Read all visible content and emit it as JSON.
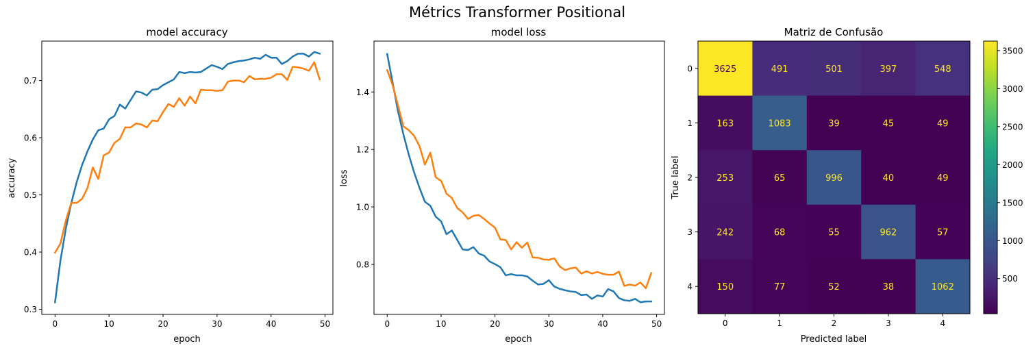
{
  "figure_title": "Métrics Transformer Positional",
  "chart_data": [
    {
      "type": "line",
      "title": "model accuracy",
      "xlabel": "epoch",
      "ylabel": "accuracy",
      "xlim": [
        -2.45,
        51.45
      ],
      "ylim": [
        0.291,
        0.769
      ],
      "xticks": [
        0,
        10,
        20,
        30,
        40,
        50
      ],
      "xtick_labels": [
        "0",
        "10",
        "20",
        "30",
        "40",
        "50"
      ],
      "yticks": [
        0.3,
        0.4,
        0.5,
        0.6,
        0.7
      ],
      "ytick_labels": [
        "0.3",
        "0.4",
        "0.5",
        "0.6",
        "0.7"
      ],
      "grid": false,
      "x": [
        0,
        1,
        2,
        3,
        4,
        5,
        6,
        7,
        8,
        9,
        10,
        11,
        12,
        13,
        14,
        15,
        16,
        17,
        18,
        19,
        20,
        21,
        22,
        23,
        24,
        25,
        26,
        27,
        28,
        29,
        30,
        31,
        32,
        33,
        34,
        35,
        36,
        37,
        38,
        39,
        40,
        41,
        42,
        43,
        44,
        45,
        46,
        47,
        48,
        49
      ],
      "series": [
        {
          "color": "#1f77b4",
          "values": [
            0.312,
            0.385,
            0.441,
            0.485,
            0.522,
            0.552,
            0.576,
            0.597,
            0.613,
            0.616,
            0.632,
            0.638,
            0.658,
            0.651,
            0.666,
            0.681,
            0.679,
            0.674,
            0.684,
            0.685,
            0.692,
            0.697,
            0.702,
            0.715,
            0.713,
            0.715,
            0.714,
            0.715,
            0.721,
            0.727,
            0.724,
            0.72,
            0.729,
            0.732,
            0.734,
            0.735,
            0.737,
            0.74,
            0.738,
            0.745,
            0.74,
            0.74,
            0.729,
            0.734,
            0.742,
            0.747,
            0.747,
            0.742,
            0.75,
            0.747
          ]
        },
        {
          "color": "#ff7f0e",
          "values": [
            0.399,
            0.415,
            0.455,
            0.486,
            0.486,
            0.493,
            0.512,
            0.548,
            0.528,
            0.569,
            0.574,
            0.591,
            0.598,
            0.618,
            0.618,
            0.625,
            0.623,
            0.618,
            0.63,
            0.629,
            0.645,
            0.659,
            0.654,
            0.669,
            0.656,
            0.672,
            0.66,
            0.684,
            0.683,
            0.683,
            0.682,
            0.683,
            0.698,
            0.7,
            0.7,
            0.697,
            0.708,
            0.702,
            0.703,
            0.703,
            0.705,
            0.711,
            0.711,
            0.701,
            0.724,
            0.723,
            0.721,
            0.717,
            0.732,
            0.702
          ]
        }
      ]
    },
    {
      "type": "line",
      "title": "model loss",
      "xlabel": "epoch",
      "ylabel": "loss",
      "xlim": [
        -2.45,
        51.45
      ],
      "ylim": [
        0.626,
        1.577
      ],
      "xticks": [
        0,
        10,
        20,
        30,
        40,
        50
      ],
      "xtick_labels": [
        "0",
        "10",
        "20",
        "30",
        "40",
        "50"
      ],
      "yticks": [
        0.8,
        1.0,
        1.2,
        1.4
      ],
      "ytick_labels": [
        "0.8",
        "1.0",
        "1.2",
        "1.4"
      ],
      "grid": false,
      "x": [
        0,
        1,
        2,
        3,
        4,
        5,
        6,
        7,
        8,
        9,
        10,
        11,
        12,
        13,
        14,
        15,
        16,
        17,
        18,
        19,
        20,
        21,
        22,
        23,
        24,
        25,
        26,
        27,
        28,
        29,
        30,
        31,
        32,
        33,
        34,
        35,
        36,
        37,
        38,
        39,
        40,
        41,
        42,
        43,
        44,
        45,
        46,
        47,
        48,
        49
      ],
      "series": [
        {
          "color": "#1f77b4",
          "values": [
            1.532,
            1.433,
            1.333,
            1.253,
            1.182,
            1.12,
            1.066,
            1.018,
            1.004,
            0.966,
            0.95,
            0.905,
            0.918,
            0.885,
            0.852,
            0.85,
            0.86,
            0.838,
            0.83,
            0.81,
            0.801,
            0.79,
            0.762,
            0.766,
            0.762,
            0.762,
            0.758,
            0.743,
            0.73,
            0.732,
            0.745,
            0.723,
            0.715,
            0.71,
            0.706,
            0.704,
            0.693,
            0.695,
            0.68,
            0.692,
            0.688,
            0.714,
            0.706,
            0.683,
            0.675,
            0.673,
            0.68,
            0.668,
            0.671,
            0.671
          ]
        },
        {
          "color": "#ff7f0e",
          "values": [
            1.476,
            1.424,
            1.353,
            1.28,
            1.267,
            1.247,
            1.211,
            1.147,
            1.189,
            1.103,
            1.091,
            1.046,
            1.031,
            0.996,
            0.981,
            0.958,
            0.969,
            0.972,
            0.958,
            0.942,
            0.928,
            0.887,
            0.885,
            0.852,
            0.877,
            0.858,
            0.876,
            0.824,
            0.823,
            0.817,
            0.816,
            0.821,
            0.793,
            0.78,
            0.786,
            0.789,
            0.768,
            0.776,
            0.768,
            0.774,
            0.767,
            0.764,
            0.764,
            0.775,
            0.725,
            0.73,
            0.726,
            0.737,
            0.717,
            0.77
          ]
        }
      ]
    },
    {
      "type": "heatmap",
      "title": "Matriz de Confusão",
      "xlabel": "Predicted label",
      "ylabel": "True label",
      "x_categories": [
        "0",
        "1",
        "2",
        "3",
        "4"
      ],
      "y_categories": [
        "0",
        "1",
        "2",
        "3",
        "4"
      ],
      "matrix": [
        [
          3625,
          491,
          501,
          397,
          548
        ],
        [
          163,
          1083,
          39,
          45,
          49
        ],
        [
          253,
          65,
          996,
          40,
          49
        ],
        [
          242,
          68,
          55,
          962,
          57
        ],
        [
          150,
          77,
          52,
          38,
          1062
        ]
      ],
      "colormap": "viridis",
      "text_color_on_dark": "#fde725",
      "text_color_on_light": "#440154",
      "vmin": 38,
      "vmax": 3625,
      "colorbar_ticks": [
        500,
        1000,
        1500,
        2000,
        2500,
        3000,
        3500
      ],
      "colorbar_tick_labels": [
        "500",
        "1000",
        "1500",
        "2000",
        "2500",
        "3000",
        "3500"
      ]
    }
  ]
}
